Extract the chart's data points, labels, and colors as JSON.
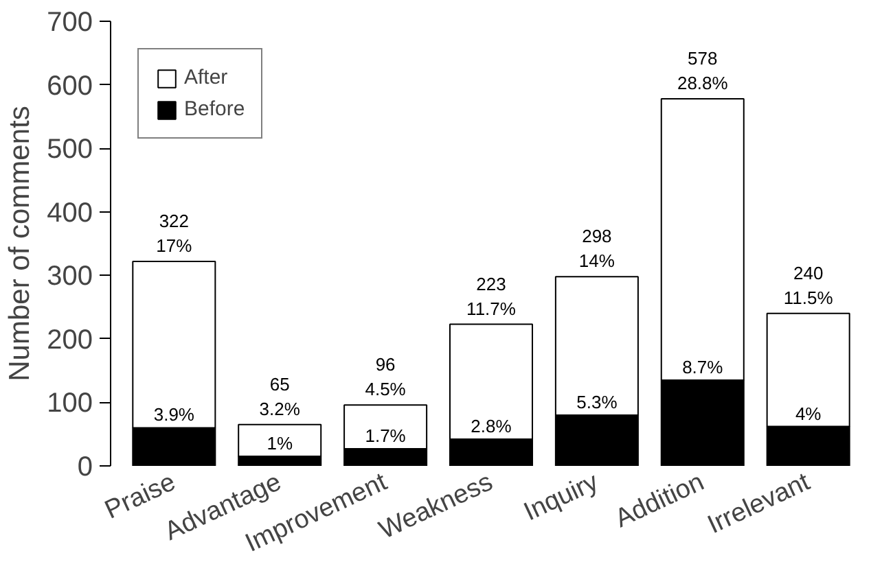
{
  "chart_data": {
    "type": "bar",
    "stacked": true,
    "ylabel": "Number of comments",
    "categories": [
      "Praise",
      "Advantage",
      "Improvement",
      "Weakness",
      "Inquiry",
      "Addition",
      "Irrelevant"
    ],
    "series": [
      {
        "name": "Before",
        "color": "#000000",
        "values": [
          60,
          15,
          27,
          42,
          80,
          135,
          62
        ]
      },
      {
        "name": "After",
        "color": "#ffffff",
        "values": [
          262,
          50,
          69,
          181,
          218,
          443,
          178
        ]
      }
    ],
    "totals": [
      "322\n17%",
      "65\n3.2%",
      "96\n4.5%",
      "223\n11.7%",
      "298\n14%",
      "578\n28.8%",
      "240\n11.5%"
    ],
    "annotations": [
      {
        "text": "3.9%",
        "x": "Praise",
        "y": 60
      },
      {
        "text": "1%",
        "x": "Advantage",
        "y": 15
      },
      {
        "text": "1.7%",
        "x": "Improvement",
        "y": 27
      },
      {
        "text": "2.8%",
        "x": "Weakness",
        "y": 42
      },
      {
        "text": "5.3%",
        "x": "Inquiry",
        "y": 80
      },
      {
        "text": "8.7%",
        "x": "Addition",
        "y": 135
      },
      {
        "text": "4%",
        "x": "Irrelevant",
        "y": 62
      }
    ],
    "ylim": [
      0,
      700
    ],
    "yticks": [
      0,
      100,
      200,
      300,
      400,
      500,
      600,
      700
    ],
    "grid": false,
    "legend": "top left"
  }
}
